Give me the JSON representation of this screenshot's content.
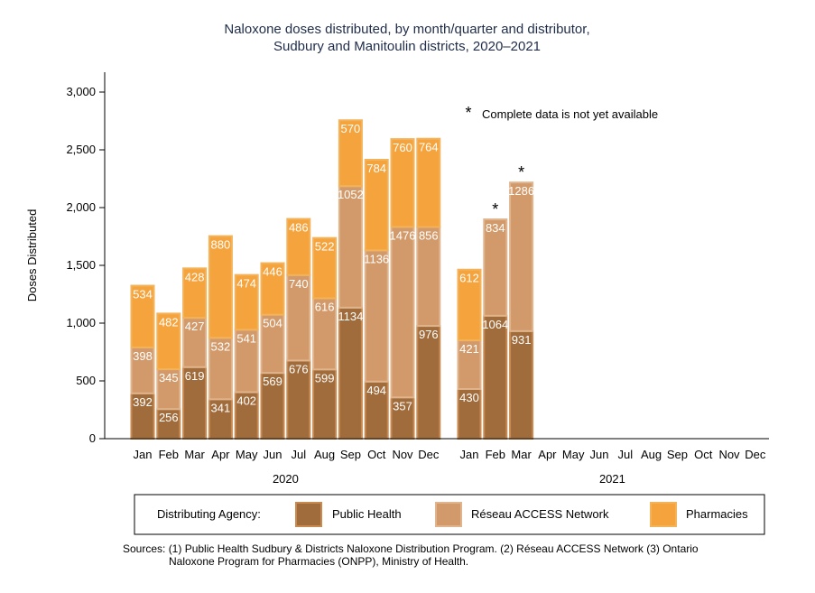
{
  "title_line1": "Naloxone doses distributed, by month/quarter and distributor,",
  "title_line2": "Sudbury and Manitoulin districts, 2020–2021",
  "note_symbol": "*",
  "note_text": "Complete data is not yet available",
  "legend": {
    "label": "Distributing Agency:",
    "items": [
      "Public Health",
      "Réseau ACCESS Network",
      "Pharmacies"
    ]
  },
  "source_line1": "Sources:  (1) Public Health Sudbury & Districts Naloxone Distribution Program. (2) Réseau ACCESS Network (3) Ontario",
  "source_line2": "Naloxone Program for Pharmacies (ONPP), Ministry of Health.",
  "colors": {
    "public_health": "#a06c3c",
    "reseau_access": "#d29a6a",
    "pharmacies": "#f5a33c",
    "public_health_edge": "#c88a50",
    "reseau_access_edge": "#e0b48c",
    "pharmacies_edge": "#f3b35a"
  },
  "chart_data": {
    "type": "bar",
    "stacked": true,
    "ylabel": "Doses Distributed",
    "ylim": [
      0,
      3000
    ],
    "yticks": [
      0,
      500,
      1000,
      1500,
      2000,
      2500,
      3000
    ],
    "ytick_labels": [
      "0",
      "500",
      "1,000",
      "1,500",
      "2,000",
      "2,500",
      "3,000"
    ],
    "grid": false,
    "legend_position": "bottom",
    "groups": [
      {
        "label": "2020",
        "months": [
          "Jan",
          "Feb",
          "Mar",
          "Apr",
          "May",
          "Jun",
          "Jul",
          "Aug",
          "Sep",
          "Oct",
          "Nov",
          "Dec"
        ],
        "series": [
          {
            "name": "Public Health",
            "values": [
              392,
              256,
              619,
              341,
              402,
              569,
              676,
              599,
              1134,
              494,
              357,
              976
            ]
          },
          {
            "name": "Réseau ACCESS Network",
            "values": [
              398,
              345,
              427,
              532,
              541,
              504,
              740,
              616,
              1052,
              1136,
              1476,
              856
            ]
          },
          {
            "name": "Pharmacies",
            "values": [
              534,
              482,
              428,
              880,
              474,
              446,
              486,
              522,
              570,
              784,
              760,
              764
            ]
          }
        ],
        "incomplete": []
      },
      {
        "label": "2021",
        "months": [
          "Jan",
          "Feb",
          "Mar",
          "Apr",
          "May",
          "Jun",
          "Jul",
          "Aug",
          "Sep",
          "Oct",
          "Nov",
          "Dec"
        ],
        "series": [
          {
            "name": "Public Health",
            "values": [
              430,
              1064,
              931,
              null,
              null,
              null,
              null,
              null,
              null,
              null,
              null,
              null
            ]
          },
          {
            "name": "Réseau ACCESS Network",
            "values": [
              421,
              834,
              1286,
              null,
              null,
              null,
              null,
              null,
              null,
              null,
              null,
              null
            ]
          },
          {
            "name": "Pharmacies",
            "values": [
              612,
              null,
              null,
              null,
              null,
              null,
              null,
              null,
              null,
              null,
              null,
              null
            ]
          }
        ],
        "incomplete": [
          1,
          2
        ]
      }
    ]
  }
}
